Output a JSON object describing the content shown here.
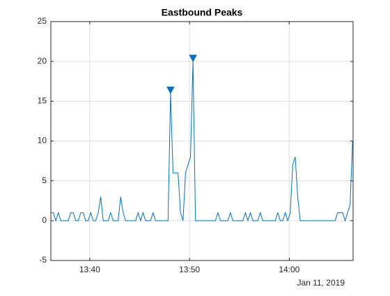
{
  "chart_data": {
    "type": "line",
    "title": "Eastbound Peaks",
    "x_secondary_label": "Jan 11, 2019",
    "series": [
      {
        "color": "#0072bd",
        "x": [
          816.1,
          816.35,
          816.6,
          816.85,
          817.1,
          817.35,
          817.6,
          817.85,
          818.1,
          818.35,
          818.6,
          818.85,
          819.1,
          819.35,
          819.6,
          819.85,
          820.1,
          820.35,
          820.6,
          820.85,
          821.1,
          821.35,
          821.6,
          821.85,
          822.1,
          822.35,
          822.6,
          822.85,
          823.1,
          823.35,
          823.6,
          823.85,
          824.1,
          824.35,
          824.6,
          824.85,
          825.1,
          825.35,
          825.6,
          825.85,
          826.1,
          826.35,
          826.6,
          826.85,
          827.1,
          827.35,
          827.6,
          827.85,
          828.1,
          828.35,
          828.6,
          828.85,
          829.1,
          829.35,
          829.6,
          829.85,
          830.1,
          830.35,
          830.6,
          830.85,
          831.1,
          831.35,
          831.6,
          831.85,
          832.1,
          832.35,
          832.6,
          832.85,
          833.1,
          833.35,
          833.6,
          833.85,
          834.1,
          834.35,
          834.6,
          834.85,
          835.1,
          835.35,
          835.6,
          835.85,
          836.1,
          836.35,
          836.6,
          836.85,
          837.1,
          837.35,
          837.6,
          837.85,
          838.1,
          838.35,
          838.6,
          838.85,
          839.1,
          839.35,
          839.6,
          839.85,
          840.1,
          840.35,
          840.6,
          840.85,
          841.1,
          841.35,
          841.6,
          841.85,
          842.1,
          842.35,
          842.6,
          842.85,
          843.1,
          843.35,
          843.6,
          843.85,
          844.1,
          844.35,
          844.6,
          844.85,
          845.1,
          845.35,
          845.6,
          845.85,
          846.1,
          846.35
        ],
        "values": [
          1,
          1,
          0,
          1,
          0,
          0,
          0,
          0,
          1,
          1,
          0,
          0,
          1,
          1,
          0,
          0,
          1,
          0,
          0,
          1,
          3,
          0,
          0,
          0,
          1,
          0,
          0,
          0,
          3,
          1,
          0,
          0,
          0,
          0,
          0,
          1,
          0,
          1,
          0,
          0,
          0,
          1,
          0,
          0,
          0,
          0,
          0,
          0,
          16,
          6,
          6,
          6,
          1,
          0,
          6,
          7,
          8,
          20,
          0,
          0,
          0,
          0,
          0,
          0,
          0,
          0,
          0,
          1,
          0,
          0,
          0,
          0,
          1,
          0,
          0,
          0,
          0,
          0,
          1,
          0,
          1,
          0,
          0,
          0,
          1,
          0,
          0,
          0,
          0,
          0,
          0,
          1,
          0,
          0,
          1,
          0,
          1,
          7,
          8,
          3,
          0,
          0,
          0,
          0,
          0,
          0,
          0,
          0,
          0,
          0,
          0,
          0,
          0,
          0,
          0,
          1,
          1,
          1,
          0,
          1,
          2,
          10
        ]
      }
    ],
    "peaks": {
      "color": "#0072bd",
      "x": [
        828.1,
        830.35
      ],
      "values": [
        16,
        20
      ]
    },
    "xlim": [
      816.1,
      846.4
    ],
    "xticks": [
      {
        "value": 820,
        "label": "13:40"
      },
      {
        "value": 830,
        "label": "13:50"
      },
      {
        "value": 840,
        "label": "14:00"
      }
    ],
    "ylim": [
      -5,
      25
    ],
    "yticks": [
      -5,
      0,
      5,
      10,
      15,
      20,
      25
    ],
    "grid": true
  }
}
